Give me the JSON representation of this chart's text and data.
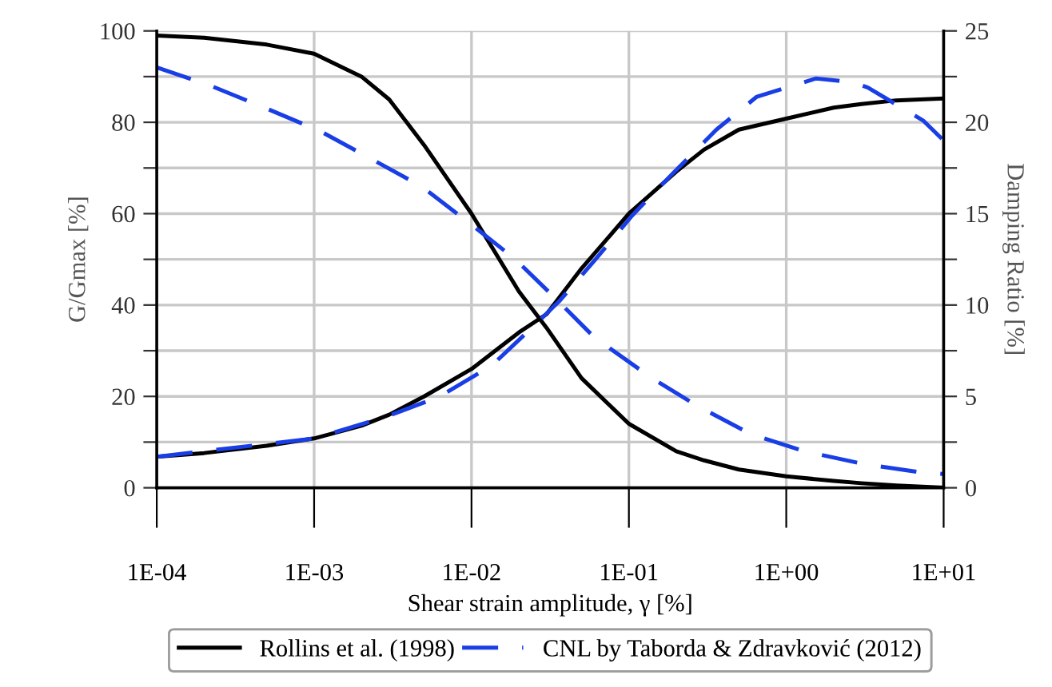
{
  "chart_data": {
    "type": "line",
    "xlabel": "Shear strain amplitude, γ [%]",
    "ylabel": "G/Gmax [%]",
    "y2label": "Damping Ratio [%]",
    "log": "x",
    "grid": true,
    "legend": "bottom",
    "xlim": [
      0.0001,
      10
    ],
    "xticks": [
      {
        "value": 0.0001,
        "label": "1E-04"
      },
      {
        "value": 0.001,
        "label": "1E-03"
      },
      {
        "value": 0.01,
        "label": "1E-02"
      },
      {
        "value": 0.1,
        "label": "1E-01"
      },
      {
        "value": 1,
        "label": "1E+00"
      },
      {
        "value": 10,
        "label": "1E+01"
      }
    ],
    "ylim": [
      0,
      100
    ],
    "yticks": [
      0,
      {
        "value": 10,
        "label": null
      },
      20,
      {
        "value": 30,
        "label": null
      },
      40,
      {
        "value": 50,
        "label": null
      },
      60,
      {
        "value": 70,
        "label": null
      },
      80,
      {
        "value": 90,
        "label": null
      },
      100
    ],
    "y2lim": [
      0,
      25
    ],
    "y2ticks": [
      0,
      {
        "value": 2.5,
        "label": null
      },
      5,
      {
        "value": 7.5,
        "label": null
      },
      10,
      {
        "value": 12.5,
        "label": null
      },
      15,
      {
        "value": 17.5,
        "label": null
      },
      20,
      {
        "value": 22.5,
        "label": null
      },
      25
    ],
    "series": [
      {
        "name": "Rollins et al. (1998)",
        "color": "#000000",
        "line_style": "solid",
        "x": [
          0.0001,
          0.0002,
          0.0005,
          0.001,
          0.002,
          0.003,
          0.005,
          0.01,
          0.02,
          0.03,
          0.05,
          0.1,
          0.2,
          0.3,
          0.5,
          1,
          2,
          3,
          5,
          10
        ],
        "values": [
          99,
          98.5,
          97,
          95,
          90,
          85,
          75,
          60,
          43,
          35,
          24,
          14,
          8,
          6,
          4,
          2.5,
          1.5,
          1,
          0.5,
          0
        ]
      },
      {
        "color": "#000000",
        "line_style": "solid",
        "axis": "y2",
        "x": [
          0.0001,
          0.0002,
          0.0005,
          0.001,
          0.002,
          0.003,
          0.005,
          0.01,
          0.02,
          0.03,
          0.05,
          0.1,
          0.2,
          0.3,
          0.5,
          1,
          2,
          3,
          5,
          10
        ],
        "values": [
          1.7,
          1.9,
          2.3,
          2.7,
          3.4,
          4,
          5,
          6.5,
          8.5,
          9.5,
          12,
          15,
          17.3,
          18.5,
          19.6,
          20.2,
          20.8,
          21,
          21.2,
          21.3
        ]
      },
      {
        "name": "CNL by Taborda & Zdravković (2012)",
        "color": "#1a3ee6",
        "line_style": "dashed",
        "x": [
          0.0001,
          0.00022,
          0.0005,
          0.0011,
          0.0023,
          0.0048,
          0.01,
          0.019,
          0.036,
          0.06,
          0.14,
          0.27,
          0.6,
          1.3,
          3.1,
          7.1,
          10
        ],
        "values": [
          92,
          88,
          83,
          78,
          72,
          66,
          57.6,
          50,
          40.7,
          33,
          24,
          18,
          11.7,
          8,
          5.2,
          3.4,
          3
        ]
      },
      {
        "color": "#1a3ee6",
        "line_style": "dashed",
        "axis": "y2",
        "x": [
          0.0001,
          0.001,
          0.0029,
          0.0063,
          0.0135,
          0.0245,
          0.036,
          0.06,
          0.105,
          0.19,
          0.36,
          0.65,
          1.55,
          2.6,
          3.3,
          7.4,
          10
        ],
        "values": [
          1.7,
          2.7,
          3.9,
          5,
          6.7,
          8.8,
          10.2,
          12.4,
          14.9,
          17.2,
          19.6,
          21.4,
          22.4,
          22.2,
          21.9,
          20.1,
          19
        ]
      }
    ]
  }
}
